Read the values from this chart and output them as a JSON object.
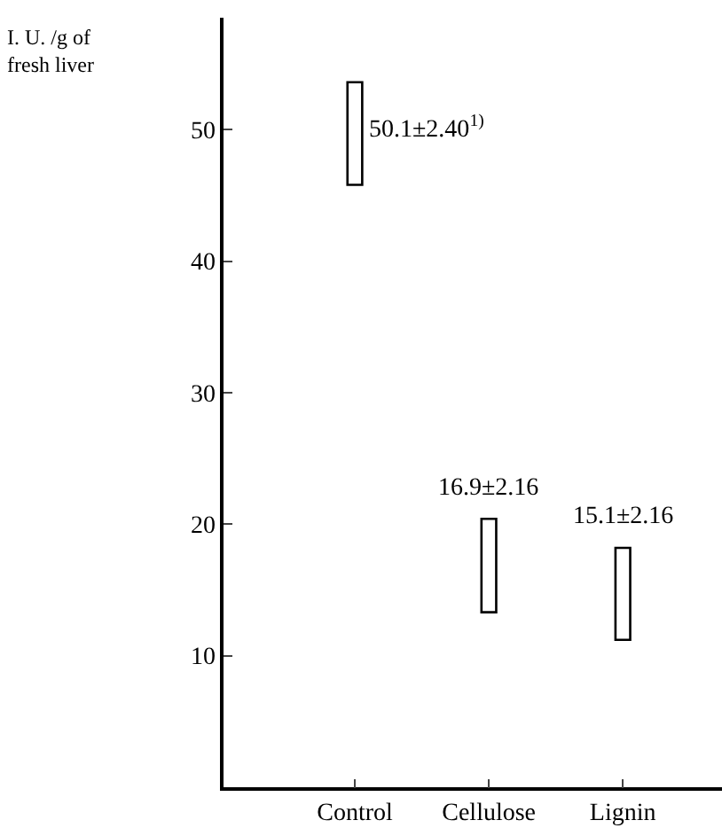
{
  "chart_data": {
    "type": "bar",
    "ylabel": "I. U. /g of\nfresh liver",
    "categories": [
      "Control",
      "Cellulose",
      "Lignin"
    ],
    "base": [
      45.8,
      13.3,
      11.2
    ],
    "values": [
      7.8,
      7.1,
      7.0
    ],
    "color": "#ffffff",
    "ylim": [
      0,
      58.5
    ],
    "yticks": [
      10,
      20,
      30,
      40,
      50
    ],
    "legend": false,
    "annotations": [
      {
        "text": "50.1±2.40$^{1)}$",
        "x": "Control",
        "y": 50.1
      },
      {
        "text": "16.9±2.16",
        "x": "Cellulose",
        "y": 20.4
      },
      {
        "text": "15.1±2.16",
        "x": "Lignin",
        "y": 18.2
      }
    ]
  }
}
